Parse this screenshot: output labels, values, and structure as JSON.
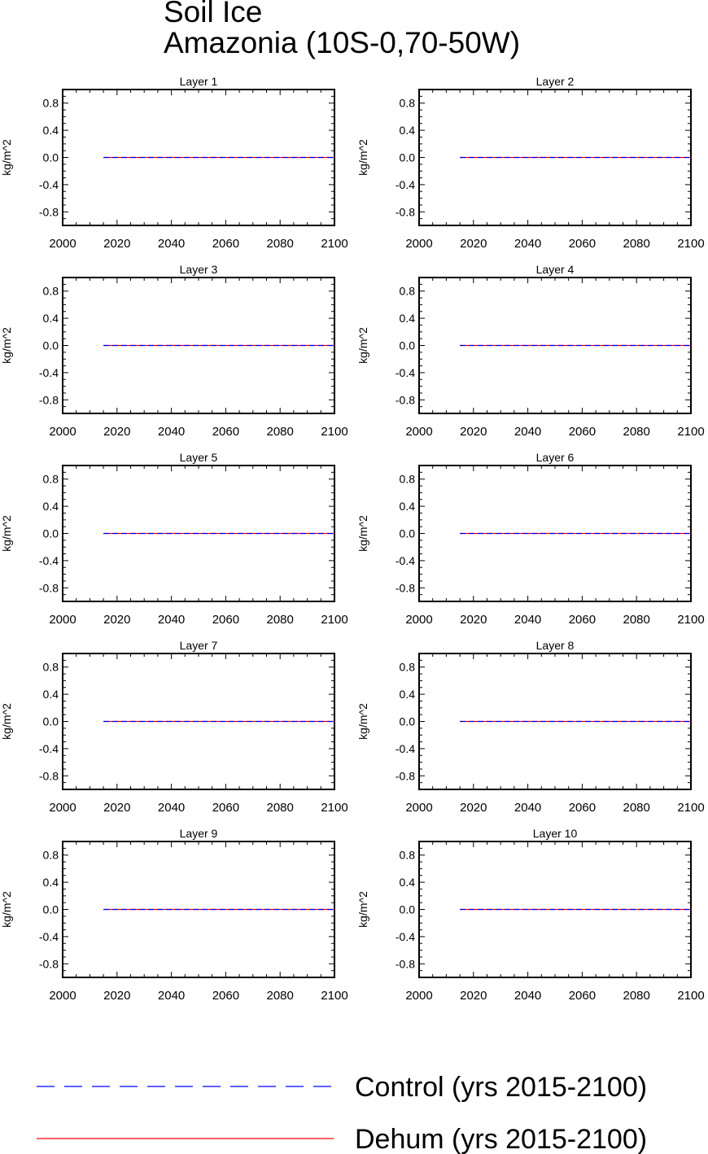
{
  "title": "Soil Ice",
  "subtitle": "Amazonia (10S-0,70-50W)",
  "colors": {
    "control": "#0000ff",
    "dehum": "#ff0000",
    "axis": "#000000"
  },
  "legend": {
    "items": [
      {
        "label": "Control (yrs 2015-2100)",
        "style": "dashed",
        "color": "#0000ff"
      },
      {
        "label": "Dehum (yrs 2015-2100)",
        "style": "solid",
        "color": "#ff0000"
      }
    ]
  },
  "chart_data": [
    {
      "type": "line",
      "title": "Layer 1",
      "ylabel": "kg/m^2",
      "xlim": [
        2000,
        2100
      ],
      "ylim": [
        -1,
        1
      ],
      "xticks": [
        2000,
        2020,
        2040,
        2060,
        2080,
        2100
      ],
      "yticks": [
        "0.8",
        "0.4",
        "0.0",
        "-0.4",
        "-0.8"
      ],
      "series": [
        {
          "name": "Control (yrs 2015-2100)",
          "x": [
            2015,
            2100
          ],
          "y": [
            0,
            0
          ]
        },
        {
          "name": "Dehum (yrs 2015-2100)",
          "x": [
            2015,
            2100
          ],
          "y": [
            0,
            0
          ]
        }
      ]
    },
    {
      "type": "line",
      "title": "Layer 2",
      "ylabel": "kg/m^2",
      "xlim": [
        2000,
        2100
      ],
      "ylim": [
        -1,
        1
      ],
      "xticks": [
        2000,
        2020,
        2040,
        2060,
        2080,
        2100
      ],
      "yticks": [
        "0.8",
        "0.4",
        "0.0",
        "-0.4",
        "-0.8"
      ],
      "series": [
        {
          "name": "Control (yrs 2015-2100)",
          "x": [
            2015,
            2100
          ],
          "y": [
            0,
            0
          ]
        },
        {
          "name": "Dehum (yrs 2015-2100)",
          "x": [
            2015,
            2100
          ],
          "y": [
            0,
            0
          ]
        }
      ]
    },
    {
      "type": "line",
      "title": "Layer 3",
      "ylabel": "kg/m^2",
      "xlim": [
        2000,
        2100
      ],
      "ylim": [
        -1,
        1
      ],
      "xticks": [
        2000,
        2020,
        2040,
        2060,
        2080,
        2100
      ],
      "yticks": [
        "0.8",
        "0.4",
        "0.0",
        "-0.4",
        "-0.8"
      ],
      "series": [
        {
          "name": "Control (yrs 2015-2100)",
          "x": [
            2015,
            2100
          ],
          "y": [
            0,
            0
          ]
        },
        {
          "name": "Dehum (yrs 2015-2100)",
          "x": [
            2015,
            2100
          ],
          "y": [
            0,
            0
          ]
        }
      ]
    },
    {
      "type": "line",
      "title": "Layer 4",
      "ylabel": "kg/m^2",
      "xlim": [
        2000,
        2100
      ],
      "ylim": [
        -1,
        1
      ],
      "xticks": [
        2000,
        2020,
        2040,
        2060,
        2080,
        2100
      ],
      "yticks": [
        "0.8",
        "0.4",
        "0.0",
        "-0.4",
        "-0.8"
      ],
      "series": [
        {
          "name": "Control (yrs 2015-2100)",
          "x": [
            2015,
            2100
          ],
          "y": [
            0,
            0
          ]
        },
        {
          "name": "Dehum (yrs 2015-2100)",
          "x": [
            2015,
            2100
          ],
          "y": [
            0,
            0
          ]
        }
      ]
    },
    {
      "type": "line",
      "title": "Layer 5",
      "ylabel": "kg/m^2",
      "xlim": [
        2000,
        2100
      ],
      "ylim": [
        -1,
        1
      ],
      "xticks": [
        2000,
        2020,
        2040,
        2060,
        2080,
        2100
      ],
      "yticks": [
        "0.8",
        "0.4",
        "0.0",
        "-0.4",
        "-0.8"
      ],
      "series": [
        {
          "name": "Control (yrs 2015-2100)",
          "x": [
            2015,
            2100
          ],
          "y": [
            0,
            0
          ]
        },
        {
          "name": "Dehum (yrs 2015-2100)",
          "x": [
            2015,
            2100
          ],
          "y": [
            0,
            0
          ]
        }
      ]
    },
    {
      "type": "line",
      "title": "Layer 6",
      "ylabel": "kg/m^2",
      "xlim": [
        2000,
        2100
      ],
      "ylim": [
        -1,
        1
      ],
      "xticks": [
        2000,
        2020,
        2040,
        2060,
        2080,
        2100
      ],
      "yticks": [
        "0.8",
        "0.4",
        "0.0",
        "-0.4",
        "-0.8"
      ],
      "series": [
        {
          "name": "Control (yrs 2015-2100)",
          "x": [
            2015,
            2100
          ],
          "y": [
            0,
            0
          ]
        },
        {
          "name": "Dehum (yrs 2015-2100)",
          "x": [
            2015,
            2100
          ],
          "y": [
            0,
            0
          ]
        }
      ]
    },
    {
      "type": "line",
      "title": "Layer 7",
      "ylabel": "kg/m^2",
      "xlim": [
        2000,
        2100
      ],
      "ylim": [
        -1,
        1
      ],
      "xticks": [
        2000,
        2020,
        2040,
        2060,
        2080,
        2100
      ],
      "yticks": [
        "0.8",
        "0.4",
        "0.0",
        "-0.4",
        "-0.8"
      ],
      "series": [
        {
          "name": "Control (yrs 2015-2100)",
          "x": [
            2015,
            2100
          ],
          "y": [
            0,
            0
          ]
        },
        {
          "name": "Dehum (yrs 2015-2100)",
          "x": [
            2015,
            2100
          ],
          "y": [
            0,
            0
          ]
        }
      ]
    },
    {
      "type": "line",
      "title": "Layer 8",
      "ylabel": "kg/m^2",
      "xlim": [
        2000,
        2100
      ],
      "ylim": [
        -1,
        1
      ],
      "xticks": [
        2000,
        2020,
        2040,
        2060,
        2080,
        2100
      ],
      "yticks": [
        "0.8",
        "0.4",
        "0.0",
        "-0.4",
        "-0.8"
      ],
      "series": [
        {
          "name": "Control (yrs 2015-2100)",
          "x": [
            2015,
            2100
          ],
          "y": [
            0,
            0
          ]
        },
        {
          "name": "Dehum (yrs 2015-2100)",
          "x": [
            2015,
            2100
          ],
          "y": [
            0,
            0
          ]
        }
      ]
    },
    {
      "type": "line",
      "title": "Layer 9",
      "ylabel": "kg/m^2",
      "xlim": [
        2000,
        2100
      ],
      "ylim": [
        -1,
        1
      ],
      "xticks": [
        2000,
        2020,
        2040,
        2060,
        2080,
        2100
      ],
      "yticks": [
        "0.8",
        "0.4",
        "0.0",
        "-0.4",
        "-0.8"
      ],
      "series": [
        {
          "name": "Control (yrs 2015-2100)",
          "x": [
            2015,
            2100
          ],
          "y": [
            0,
            0
          ]
        },
        {
          "name": "Dehum (yrs 2015-2100)",
          "x": [
            2015,
            2100
          ],
          "y": [
            0,
            0
          ]
        }
      ]
    },
    {
      "type": "line",
      "title": "Layer 10",
      "ylabel": "kg/m^2",
      "xlim": [
        2000,
        2100
      ],
      "ylim": [
        -1,
        1
      ],
      "xticks": [
        2000,
        2020,
        2040,
        2060,
        2080,
        2100
      ],
      "yticks": [
        "0.8",
        "0.4",
        "0.0",
        "-0.4",
        "-0.8"
      ],
      "series": [
        {
          "name": "Control (yrs 2015-2100)",
          "x": [
            2015,
            2100
          ],
          "y": [
            0,
            0
          ]
        },
        {
          "name": "Dehum (yrs 2015-2100)",
          "x": [
            2015,
            2100
          ],
          "y": [
            0,
            0
          ]
        }
      ]
    }
  ]
}
